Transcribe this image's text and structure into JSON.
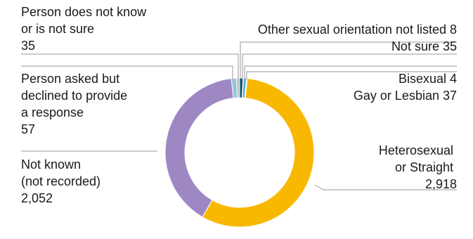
{
  "chart_data": {
    "type": "pie",
    "variant": "donut",
    "title": "",
    "slices": [
      {
        "name": "Heterosexual or Straight",
        "value": 2918,
        "value_label": "2,918",
        "color": "#f9b800"
      },
      {
        "name": "Not known (not recorded)",
        "value": 2052,
        "value_label": "2,052",
        "color": "#9e88c3"
      },
      {
        "name": "Person asked but declined to provide a response",
        "value": 57,
        "value_label": "57",
        "color": "#8fc7d9"
      },
      {
        "name": "Person does not know or is not sure",
        "value": 35,
        "value_label": "35",
        "color": "#bfbfbf"
      },
      {
        "name": "Other sexual orientation not listed",
        "value": 8,
        "value_label": "8",
        "color": "#2b8fa8"
      },
      {
        "name": "Not sure",
        "value": 35,
        "value_label": "35",
        "color": "#5fb3c8"
      },
      {
        "name": "Bisexual",
        "value": 4,
        "value_label": "4",
        "color": "#1d6f8a"
      },
      {
        "name": "Gay or Lesbian",
        "value": 37,
        "value_label": "37",
        "color": "#0d4f6b"
      }
    ]
  },
  "labels": {
    "does_not_know": [
      "Person does not know",
      "or is not sure",
      "35"
    ],
    "other": "Other sexual orientation not listed 8",
    "not_sure": "Not sure 35",
    "declined": [
      "Person asked but",
      "declined to provide",
      "a response",
      "57"
    ],
    "bisexual": "Bisexual 4",
    "gay": "Gay or Lesbian 37",
    "not_known": [
      "Not known",
      "(not recorded)",
      "2,052"
    ],
    "hetero": [
      "Heterosexual",
      "or Straight",
      "2,918"
    ]
  }
}
